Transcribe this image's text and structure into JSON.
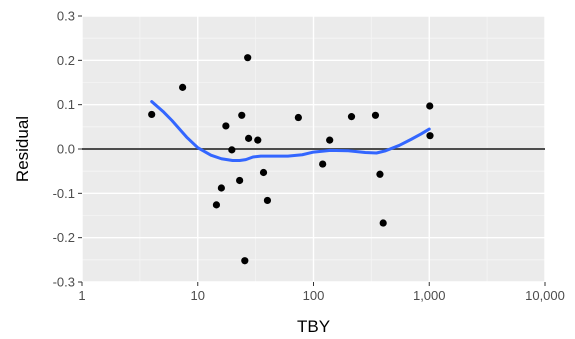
{
  "chart_data": {
    "type": "scatter",
    "title": "",
    "xlabel": "TBY",
    "ylabel": "Residual",
    "x_scale": "log10",
    "xlim": [
      1,
      10000
    ],
    "ylim": [
      -0.3,
      0.3
    ],
    "x_ticks": [
      1,
      10,
      100,
      1000,
      10000
    ],
    "x_tick_labels": [
      "1",
      "10",
      "100",
      "1,000",
      "10,000"
    ],
    "y_ticks": [
      -0.3,
      -0.2,
      -0.1,
      0.0,
      0.1,
      0.2,
      0.3
    ],
    "y_tick_labels": [
      "-0.3",
      "-0.2",
      "-0.1",
      "0.0",
      "0.1",
      "0.2",
      "0.3"
    ],
    "grid": true,
    "reference_line_y": 0,
    "points": [
      {
        "x": 4.0,
        "y": 0.078
      },
      {
        "x": 7.4,
        "y": 0.139
      },
      {
        "x": 14.5,
        "y": -0.126
      },
      {
        "x": 16.0,
        "y": -0.088
      },
      {
        "x": 17.5,
        "y": 0.052
      },
      {
        "x": 19.7,
        "y": -0.002
      },
      {
        "x": 23.0,
        "y": -0.071
      },
      {
        "x": 24.0,
        "y": 0.076
      },
      {
        "x": 25.5,
        "y": -0.252
      },
      {
        "x": 27.0,
        "y": 0.206
      },
      {
        "x": 27.5,
        "y": 0.024
      },
      {
        "x": 33.0,
        "y": 0.02
      },
      {
        "x": 37.0,
        "y": -0.053
      },
      {
        "x": 40.0,
        "y": -0.116
      },
      {
        "x": 74.0,
        "y": 0.071
      },
      {
        "x": 120.0,
        "y": -0.034
      },
      {
        "x": 138.0,
        "y": 0.02
      },
      {
        "x": 213.0,
        "y": 0.073
      },
      {
        "x": 343.0,
        "y": 0.076
      },
      {
        "x": 375.0,
        "y": -0.057
      },
      {
        "x": 400.0,
        "y": -0.167
      },
      {
        "x": 1010.0,
        "y": 0.097
      },
      {
        "x": 1015.0,
        "y": 0.03
      }
    ],
    "smooth": [
      {
        "x": 4.0,
        "y": 0.107
      },
      {
        "x": 5.0,
        "y": 0.085
      },
      {
        "x": 6.0,
        "y": 0.064
      },
      {
        "x": 8.0,
        "y": 0.027
      },
      {
        "x": 10.0,
        "y": 0.003
      },
      {
        "x": 13.0,
        "y": -0.014
      },
      {
        "x": 16.0,
        "y": -0.022
      },
      {
        "x": 20.0,
        "y": -0.026
      },
      {
        "x": 23.0,
        "y": -0.026
      },
      {
        "x": 26.0,
        "y": -0.024
      },
      {
        "x": 30.0,
        "y": -0.018
      },
      {
        "x": 35.0,
        "y": -0.016
      },
      {
        "x": 45.0,
        "y": -0.016
      },
      {
        "x": 60.0,
        "y": -0.016
      },
      {
        "x": 80.0,
        "y": -0.013
      },
      {
        "x": 100.0,
        "y": -0.007
      },
      {
        "x": 140.0,
        "y": -0.003
      },
      {
        "x": 200.0,
        "y": -0.004
      },
      {
        "x": 280.0,
        "y": -0.008
      },
      {
        "x": 350.0,
        "y": -0.009
      },
      {
        "x": 420.0,
        "y": -0.004
      },
      {
        "x": 550.0,
        "y": 0.008
      },
      {
        "x": 700.0,
        "y": 0.022
      },
      {
        "x": 850.0,
        "y": 0.034
      },
      {
        "x": 1000.0,
        "y": 0.045
      }
    ],
    "colors": {
      "panel": "#ebebeb",
      "grid_major": "#ffffff",
      "grid_minor": "#f5f5f5",
      "points": "#000000",
      "smooth": "#3366ff",
      "ref_line": "#333333"
    }
  }
}
